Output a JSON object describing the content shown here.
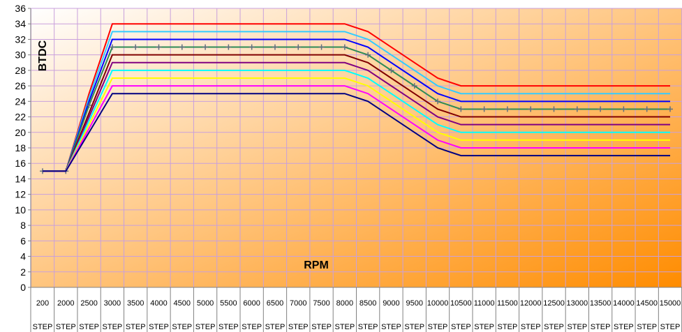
{
  "chart_data": {
    "type": "line",
    "title": "",
    "xlabel": "RPM",
    "ylabel": "BTDC",
    "ylim": [
      0,
      36
    ],
    "yticks": [
      0,
      2,
      4,
      6,
      8,
      10,
      12,
      14,
      16,
      18,
      20,
      22,
      24,
      26,
      28,
      30,
      32,
      34,
      36
    ],
    "grid": true,
    "legend": "none",
    "categories": [
      "200",
      "2000",
      "2500",
      "3000",
      "3500",
      "4000",
      "4500",
      "5000",
      "5500",
      "6000",
      "6500",
      "7000",
      "7500",
      "8000",
      "8500",
      "9000",
      "9500",
      "10000",
      "10500",
      "11000",
      "11500",
      "12000",
      "12500",
      "13000",
      "13500",
      "14000",
      "14500",
      "15000"
    ],
    "category_suffix": "STEP",
    "series": [
      {
        "color": "#ff0000",
        "values": [
          15,
          15,
          25,
          34,
          34,
          34,
          34,
          34,
          34,
          34,
          34,
          34,
          34,
          34,
          33,
          31,
          29,
          27,
          26,
          26,
          26,
          26,
          26,
          26,
          26,
          26,
          26,
          26
        ]
      },
      {
        "color": "#33ccff",
        "values": [
          15,
          15,
          24.5,
          33,
          33,
          33,
          33,
          33,
          33,
          33,
          33,
          33,
          33,
          33,
          32,
          30,
          28,
          26,
          25,
          25,
          25,
          25,
          25,
          25,
          25,
          25,
          25,
          25
        ]
      },
      {
        "color": "#0000ff",
        "values": [
          15,
          15,
          24,
          32,
          32,
          32,
          32,
          32,
          32,
          32,
          32,
          32,
          32,
          32,
          31,
          29,
          27,
          25,
          24,
          24,
          24,
          24,
          24,
          24,
          24,
          24,
          24,
          24
        ]
      },
      {
        "color": "#2e8b57",
        "marker": "+",
        "values": [
          15,
          15,
          23.5,
          31,
          31,
          31,
          31,
          31,
          31,
          31,
          31,
          31,
          31,
          31,
          30,
          28,
          26,
          24,
          23,
          23,
          23,
          23,
          23,
          23,
          23,
          23,
          23,
          23
        ]
      },
      {
        "color": "#800000",
        "values": [
          15,
          15,
          22.5,
          30,
          30,
          30,
          30,
          30,
          30,
          30,
          30,
          30,
          30,
          30,
          29,
          27,
          25,
          23,
          22,
          22,
          22,
          22,
          22,
          22,
          22,
          22,
          22,
          22
        ]
      },
      {
        "color": "#800080",
        "values": [
          15,
          15,
          22,
          29,
          29,
          29,
          29,
          29,
          29,
          29,
          29,
          29,
          29,
          29,
          28,
          26,
          24,
          22,
          21,
          21,
          21,
          21,
          21,
          21,
          21,
          21,
          21,
          21
        ]
      },
      {
        "color": "#00ffff",
        "values": [
          15,
          15,
          21.5,
          28,
          28,
          28,
          28,
          28,
          28,
          28,
          28,
          28,
          28,
          28,
          27,
          25,
          23,
          21,
          20,
          20,
          20,
          20,
          20,
          20,
          20,
          20,
          20,
          20
        ]
      },
      {
        "color": "#ffff00",
        "values": [
          15,
          15,
          21,
          27,
          27,
          27,
          27,
          27,
          27,
          27,
          27,
          27,
          27,
          27,
          26,
          24,
          22,
          20,
          19,
          19,
          19,
          19,
          19,
          19,
          19,
          19,
          19,
          19
        ]
      },
      {
        "color": "#ff00ff",
        "values": [
          15,
          15,
          20.5,
          26,
          26,
          26,
          26,
          26,
          26,
          26,
          26,
          26,
          26,
          26,
          25,
          23,
          21,
          19,
          18,
          18,
          18,
          18,
          18,
          18,
          18,
          18,
          18,
          18
        ]
      },
      {
        "color": "#000080",
        "values": [
          15,
          15,
          20,
          25,
          25,
          25,
          25,
          25,
          25,
          25,
          25,
          25,
          25,
          25,
          24,
          22,
          20,
          18,
          17,
          17,
          17,
          17,
          17,
          17,
          17,
          17,
          17,
          17
        ]
      }
    ]
  },
  "colors": {
    "plot_gradient_start": "#ffffff",
    "plot_gradient_end": "#ff8c00",
    "gridline": "#c9a0dc",
    "axis": "#808080"
  }
}
